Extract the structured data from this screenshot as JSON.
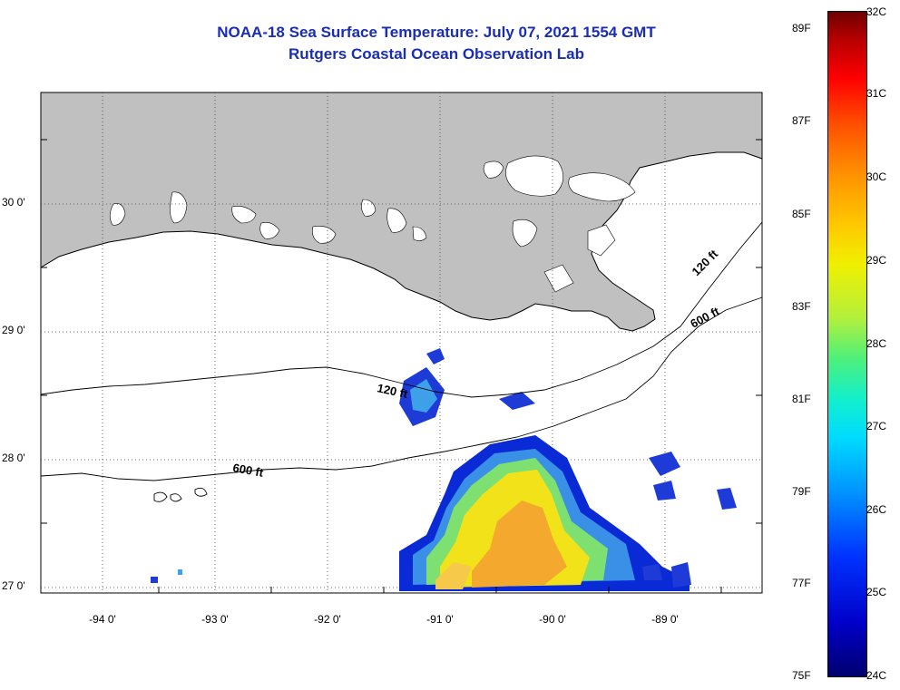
{
  "title": "NOAA-18 Sea Surface Temperature:  July 07, 2021 1554 GMT",
  "subtitle": "Rutgers Coastal Ocean Observation Lab",
  "latitude_labels": [
    "30 0'",
    "29 0'",
    "28 0'",
    "27 0'"
  ],
  "longitude_labels": [
    "-94 0'",
    "-93 0'",
    "-92 0'",
    "-91 0'",
    "-90 0'",
    "-89 0'"
  ],
  "contours": {
    "shelf_120": "120 ft",
    "shelf_600": "600 ft",
    "east_120": "120 ft",
    "east_600": "600 ft"
  },
  "colorbar": {
    "fahrenheit_labels": [
      "89F",
      "87F",
      "85F",
      "83F",
      "81F",
      "79F",
      "77F",
      "75F"
    ],
    "celsius_labels": [
      "32C",
      "31C",
      "30C",
      "29C",
      "28C",
      "27C",
      "26C",
      "25C",
      "24C"
    ]
  },
  "colors": {
    "title": "#1a2db5",
    "land": "#c0c0c0",
    "coastline": "#000000"
  }
}
